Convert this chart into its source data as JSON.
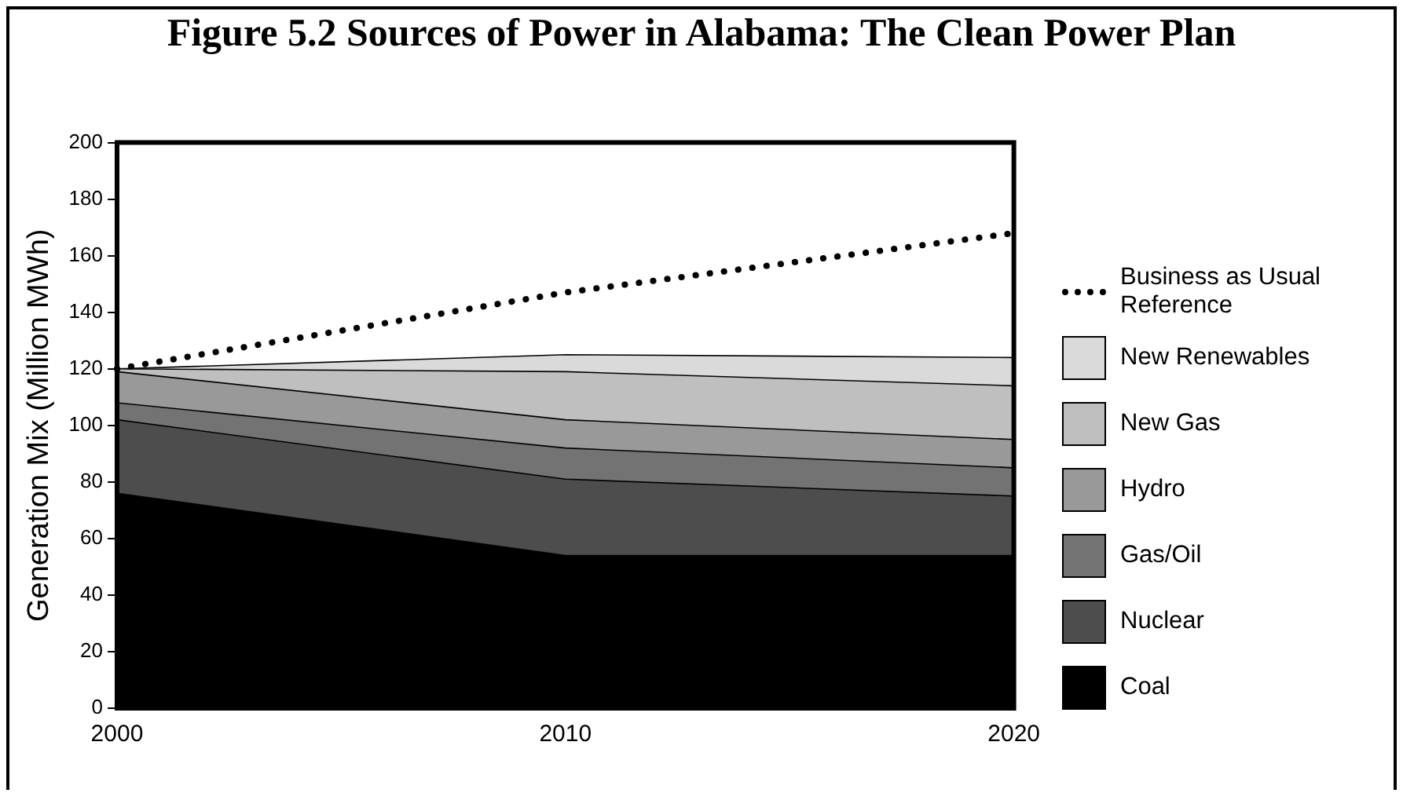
{
  "chart_data": {
    "type": "area",
    "title": "Figure 5.2  Sources of Power in Alabama: The Clean Power Plan",
    "ylabel": "Generation Mix (Million MWh)",
    "categories": [
      "2000",
      "2010",
      "2020"
    ],
    "stacked": true,
    "ylim": [
      0,
      200
    ],
    "yticks": [
      0,
      20,
      40,
      60,
      80,
      100,
      120,
      140,
      160,
      180,
      200
    ],
    "grid": false,
    "legend": "right",
    "series": [
      {
        "name": "Coal",
        "color": "#000000",
        "values": [
          76,
          54,
          54
        ]
      },
      {
        "name": "Nuclear",
        "color": "#4d4d4d",
        "values": [
          26,
          27,
          21
        ]
      },
      {
        "name": "Gas/Oil",
        "color": "#737373",
        "values": [
          6,
          11,
          10
        ]
      },
      {
        "name": "Hydro",
        "color": "#999999",
        "values": [
          11,
          10,
          10
        ]
      },
      {
        "name": "New Gas",
        "color": "#bfbfbf",
        "values": [
          1,
          17,
          19
        ]
      },
      {
        "name": "New Renewables",
        "color": "#dadada",
        "values": [
          0,
          6,
          10
        ]
      },
      {
        "name": "Business as Usual Reference",
        "type": "line",
        "color": "#000000",
        "line_style": "dotted",
        "values": [
          120,
          147,
          168
        ]
      }
    ]
  }
}
